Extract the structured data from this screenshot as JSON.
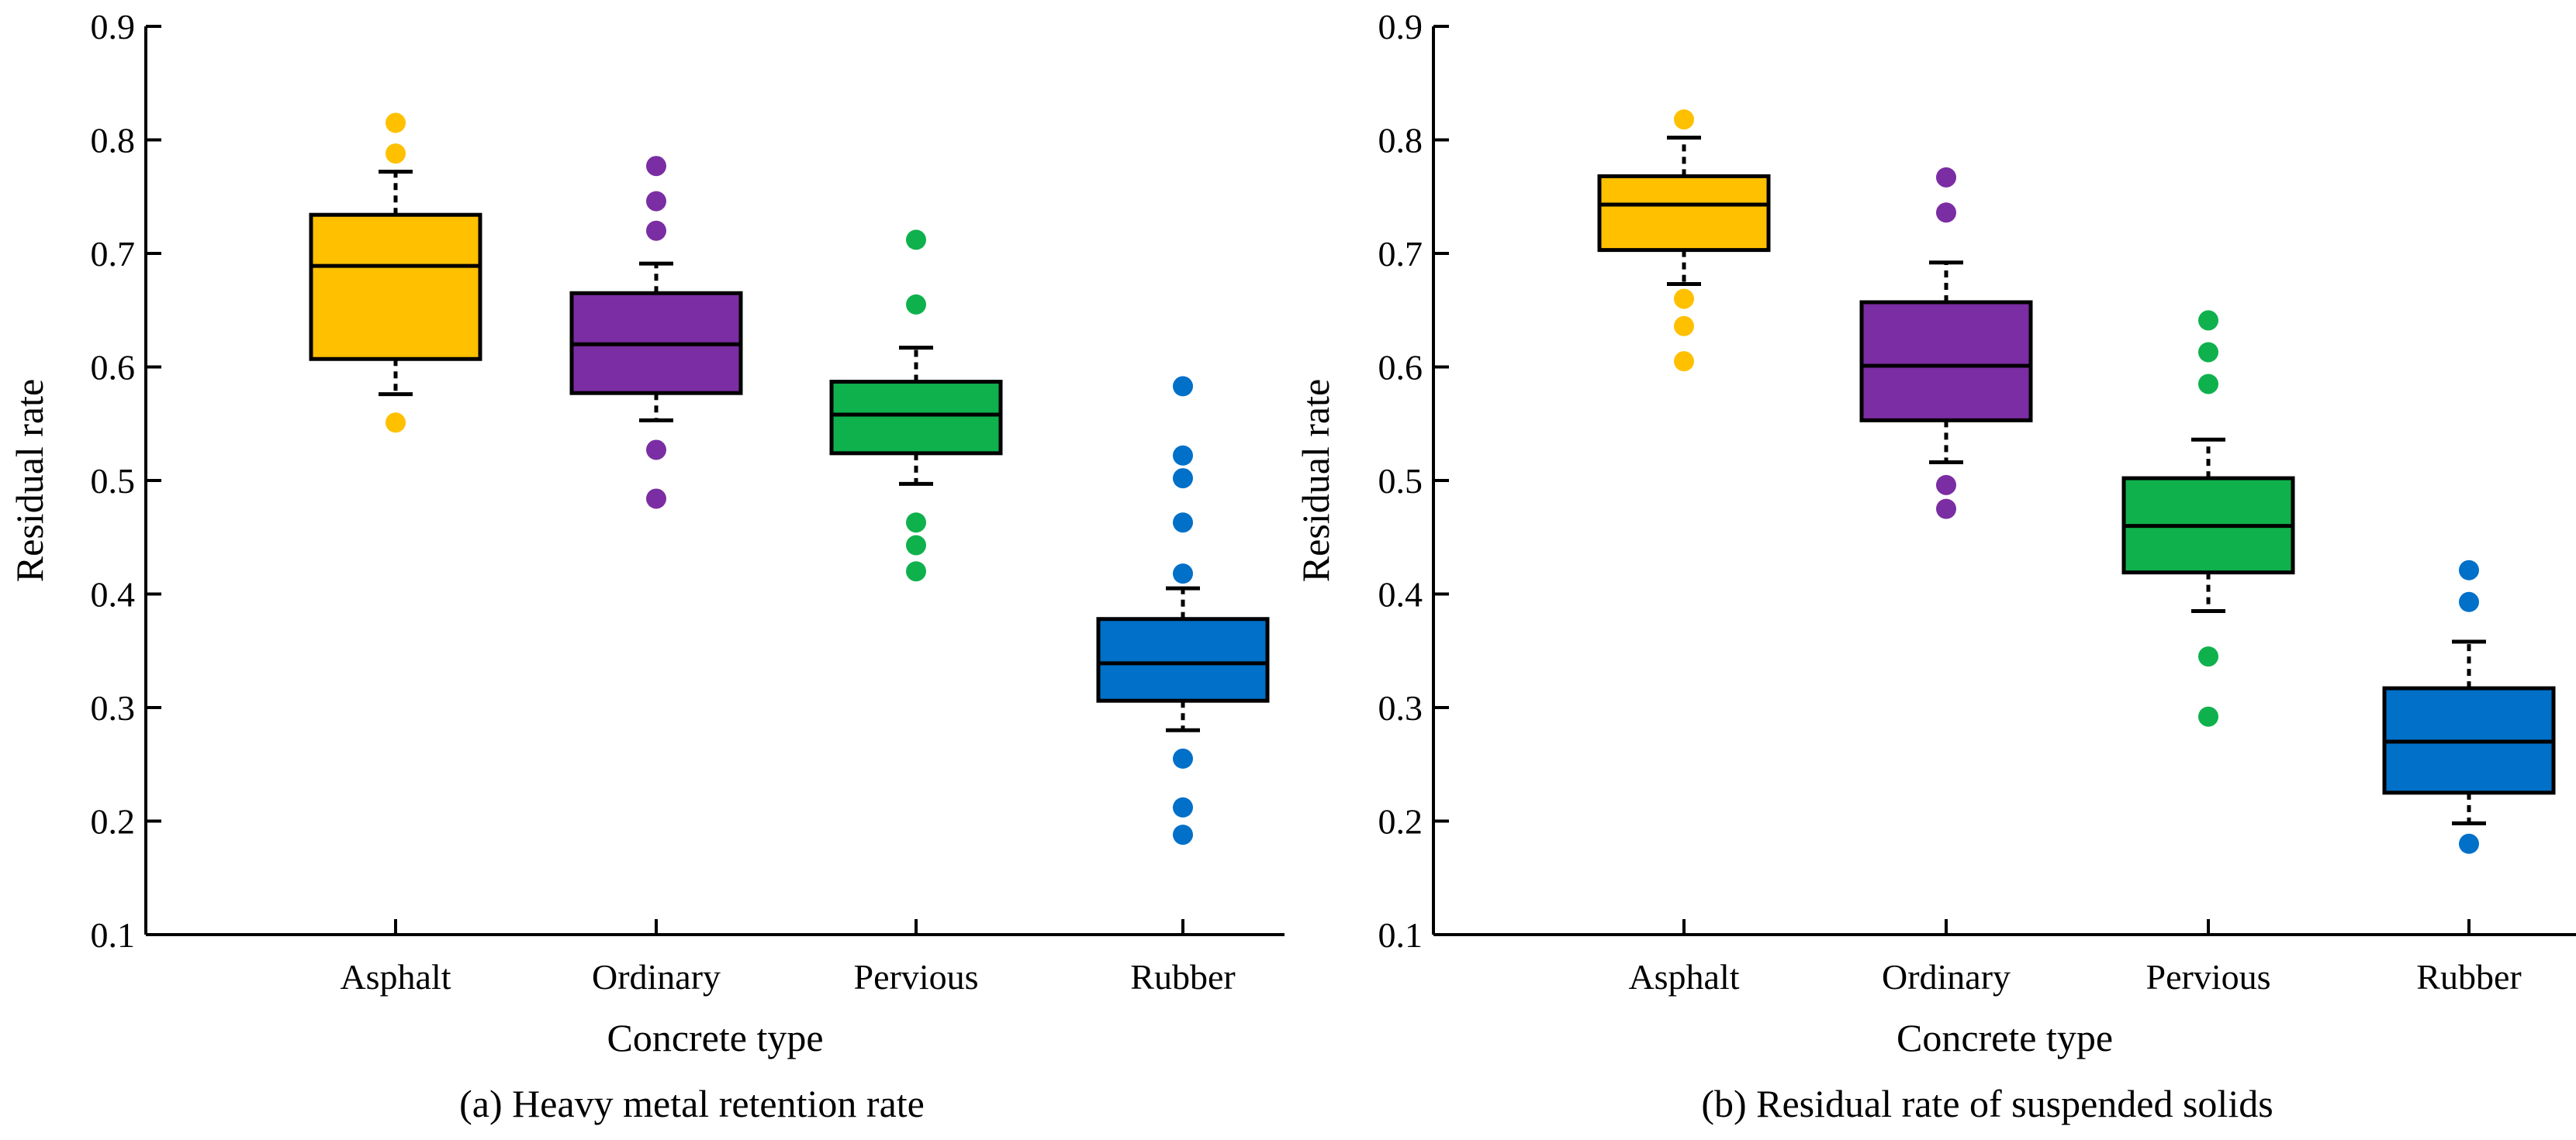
{
  "chart_data": [
    {
      "type": "box",
      "title": "(a) Heavy metal retention rate",
      "xlabel": "Concrete type",
      "ylabel": "Residual rate",
      "ylim": [
        0.1,
        0.9
      ],
      "yticks": [
        0.1,
        0.2,
        0.3,
        0.4,
        0.5,
        0.6,
        0.7,
        0.8,
        0.9
      ],
      "grid": false,
      "categories": [
        "Asphalt",
        "Ordinary",
        "Pervious",
        "Rubber"
      ],
      "series": [
        {
          "name": "Asphalt",
          "color": "#FFC000",
          "whisker_low": 0.576,
          "q1": 0.607,
          "median": 0.689,
          "q3": 0.734,
          "whisker_high": 0.772,
          "outliers": [
            0.815,
            0.788,
            0.551
          ]
        },
        {
          "name": "Ordinary",
          "color": "#7B2DA3",
          "whisker_low": 0.553,
          "q1": 0.577,
          "median": 0.62,
          "q3": 0.665,
          "whisker_high": 0.691,
          "outliers": [
            0.777,
            0.746,
            0.72,
            0.527,
            0.484
          ]
        },
        {
          "name": "Pervious",
          "color": "#0FB14C",
          "whisker_low": 0.497,
          "q1": 0.524,
          "median": 0.558,
          "q3": 0.587,
          "whisker_high": 0.617,
          "outliers": [
            0.712,
            0.655,
            0.463,
            0.443,
            0.42
          ]
        },
        {
          "name": "Rubber",
          "color": "#0070C8",
          "whisker_low": 0.28,
          "q1": 0.306,
          "median": 0.339,
          "q3": 0.378,
          "whisker_high": 0.405,
          "outliers": [
            0.583,
            0.522,
            0.502,
            0.463,
            0.418,
            0.255,
            0.212,
            0.188
          ]
        }
      ]
    },
    {
      "type": "box",
      "title": "(b) Residual rate of suspended solids",
      "xlabel": "Concrete type",
      "ylabel": "Residual rate",
      "ylim": [
        0.1,
        0.9
      ],
      "yticks": [
        0.1,
        0.2,
        0.3,
        0.4,
        0.5,
        0.6,
        0.7,
        0.8,
        0.9
      ],
      "grid": false,
      "categories": [
        "Asphalt",
        "Ordinary",
        "Pervious",
        "Rubber"
      ],
      "series": [
        {
          "name": "Asphalt",
          "color": "#FFC000",
          "whisker_low": 0.673,
          "q1": 0.703,
          "median": 0.743,
          "q3": 0.768,
          "whisker_high": 0.802,
          "outliers": [
            0.818,
            0.66,
            0.636,
            0.605
          ]
        },
        {
          "name": "Ordinary",
          "color": "#7B2DA3",
          "whisker_low": 0.516,
          "q1": 0.553,
          "median": 0.601,
          "q3": 0.657,
          "whisker_high": 0.692,
          "outliers": [
            0.767,
            0.736,
            0.496,
            0.475
          ]
        },
        {
          "name": "Pervious",
          "color": "#0FB14C",
          "whisker_low": 0.385,
          "q1": 0.419,
          "median": 0.46,
          "q3": 0.502,
          "whisker_high": 0.536,
          "outliers": [
            0.641,
            0.613,
            0.585,
            0.345,
            0.292
          ]
        },
        {
          "name": "Rubber",
          "color": "#0070C8",
          "whisker_low": 0.198,
          "q1": 0.225,
          "median": 0.27,
          "q3": 0.317,
          "whisker_high": 0.358,
          "outliers": [
            0.421,
            0.393,
            0.18
          ]
        }
      ]
    }
  ]
}
